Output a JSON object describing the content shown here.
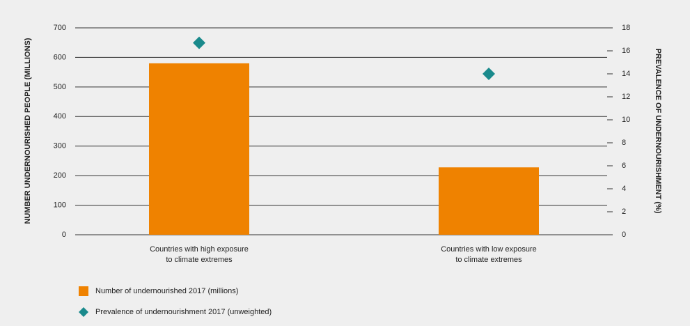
{
  "chart_data": {
    "type": "bar-dot",
    "categories": [
      [
        "Countries with high exposure",
        "to climate extremes"
      ],
      [
        "Countries with low exposure",
        "to climate extremes"
      ]
    ],
    "y_label": "NUMBER UNDERNOURISHED PEOPLE (MILLIONS)",
    "y2_label": "PREVALENCE OF UNDERNOURISHMENT (%)",
    "series": [
      {
        "name": "Number of undernourished 2017 (millions)",
        "color": "#ef8200",
        "type": "bar",
        "values": [
          580,
          228
        ]
      },
      {
        "name": "Prevalence of undernourishment 2017 (unweighted)",
        "color": "#1a8a8c",
        "type": "diamond",
        "axis": "y2",
        "values": [
          16.7,
          14.0
        ]
      }
    ],
    "ylim": [
      0,
      700
    ],
    "yticks": [
      0,
      100,
      200,
      300,
      400,
      500,
      600,
      700
    ],
    "y2lim": [
      0,
      18
    ],
    "y2ticks": [
      0,
      2,
      4,
      6,
      8,
      10,
      12,
      14,
      16,
      18
    ],
    "grid": true
  }
}
